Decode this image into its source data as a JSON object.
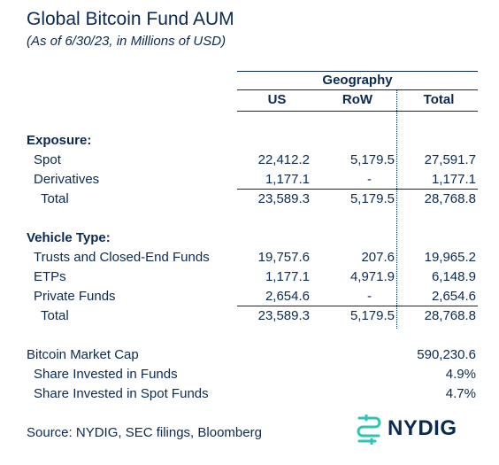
{
  "header": {
    "title": "Global Bitcoin Fund AUM",
    "subtitle": "(As of 6/30/23, in Millions of USD)"
  },
  "table": {
    "group_header": "Geography",
    "columns": [
      "US",
      "RoW",
      "Total"
    ],
    "sections": [
      {
        "label": "Exposure:",
        "rows": [
          {
            "label": "Spot",
            "values": [
              "22,412.2",
              "5,179.5",
              "27,591.7"
            ]
          },
          {
            "label": "Derivatives",
            "values": [
              "1,177.1",
              "-",
              "1,177.1"
            ]
          },
          {
            "label": "Total",
            "values": [
              "23,589.3",
              "5,179.5",
              "28,768.8"
            ]
          }
        ]
      },
      {
        "label": "Vehicle Type:",
        "rows": [
          {
            "label": "Trusts and Closed-End Funds",
            "values": [
              "19,757.6",
              "207.6",
              "19,965.2"
            ]
          },
          {
            "label": "ETPs",
            "values": [
              "1,177.1",
              "4,971.9",
              "6,148.9"
            ]
          },
          {
            "label": "Private Funds",
            "values": [
              "2,654.6",
              "-",
              "2,654.6"
            ]
          },
          {
            "label": "Total",
            "values": [
              "23,589.3",
              "5,179.5",
              "28,768.8"
            ]
          }
        ]
      }
    ],
    "summary": [
      {
        "label": "Bitcoin Market Cap",
        "value": "590,230.6"
      },
      {
        "label": "Share Invested in Funds",
        "value": "4.9%"
      },
      {
        "label": "Share Invested in Spot Funds",
        "value": "4.7%"
      }
    ]
  },
  "chart_data": {
    "type": "table",
    "title": "Global Bitcoin Fund AUM",
    "subtitle": "(As of 6/30/23, in Millions of USD)",
    "column_group": "Geography",
    "columns": [
      "US",
      "RoW",
      "Total"
    ],
    "rows": [
      {
        "section": "Exposure:",
        "label": "Spot",
        "US": 22412.2,
        "RoW": 5179.5,
        "Total": 27591.7
      },
      {
        "section": "Exposure:",
        "label": "Derivatives",
        "US": 1177.1,
        "RoW": null,
        "Total": 1177.1
      },
      {
        "section": "Exposure:",
        "label": "Total",
        "US": 23589.3,
        "RoW": 5179.5,
        "Total": 28768.8
      },
      {
        "section": "Vehicle Type:",
        "label": "Trusts and Closed-End Funds",
        "US": 19757.6,
        "RoW": 207.6,
        "Total": 19965.2
      },
      {
        "section": "Vehicle Type:",
        "label": "ETPs",
        "US": 1177.1,
        "RoW": 4971.9,
        "Total": 6148.9
      },
      {
        "section": "Vehicle Type:",
        "label": "Private Funds",
        "US": 2654.6,
        "RoW": null,
        "Total": 2654.6
      },
      {
        "section": "Vehicle Type:",
        "label": "Total",
        "US": 23589.3,
        "RoW": 5179.5,
        "Total": 28768.8
      }
    ],
    "summary": [
      {
        "label": "Bitcoin Market Cap",
        "value": 590230.6
      },
      {
        "label": "Share Invested in Funds",
        "value": "4.9%"
      },
      {
        "label": "Share Invested in Spot Funds",
        "value": "4.7%"
      }
    ]
  },
  "footer": {
    "source": "Source: NYDIG, SEC filings, Bloomberg",
    "logo_text": "NYDIG",
    "logo_color": "#2ec4b6"
  },
  "colors": {
    "text": "#0b2a52",
    "accent": "#2ec4b6"
  }
}
